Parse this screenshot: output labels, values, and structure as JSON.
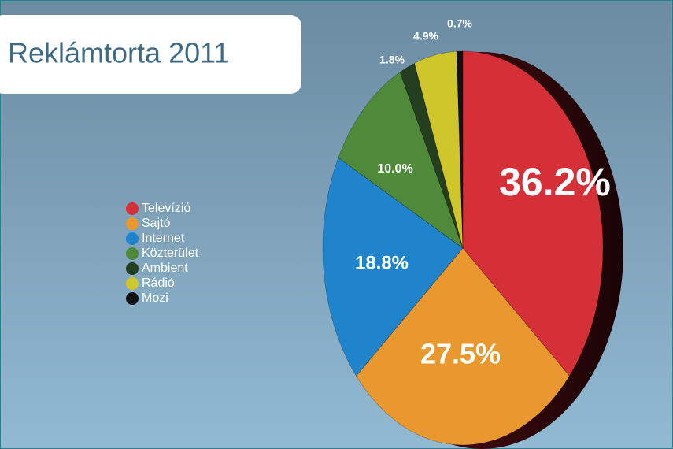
{
  "chart_data": {
    "type": "pie",
    "title": "Reklámtorta 2011",
    "categories": [
      "Televízió",
      "Sajtó",
      "Internet",
      "Közterület",
      "Ambient",
      "Rádió",
      "Mozi"
    ],
    "values": [
      36.2,
      27.5,
      18.8,
      10.0,
      1.8,
      4.9,
      0.7
    ],
    "value_labels": [
      "36.2%",
      "27.5%",
      "18.8%",
      "10.0%",
      "1.8%",
      "4.9%",
      "0.7%"
    ],
    "colors": [
      "#d52f38",
      "#e8982e",
      "#1f84cc",
      "#4f8a3b",
      "#243f1f",
      "#cfc62b",
      "#111111"
    ],
    "legend": "left"
  }
}
